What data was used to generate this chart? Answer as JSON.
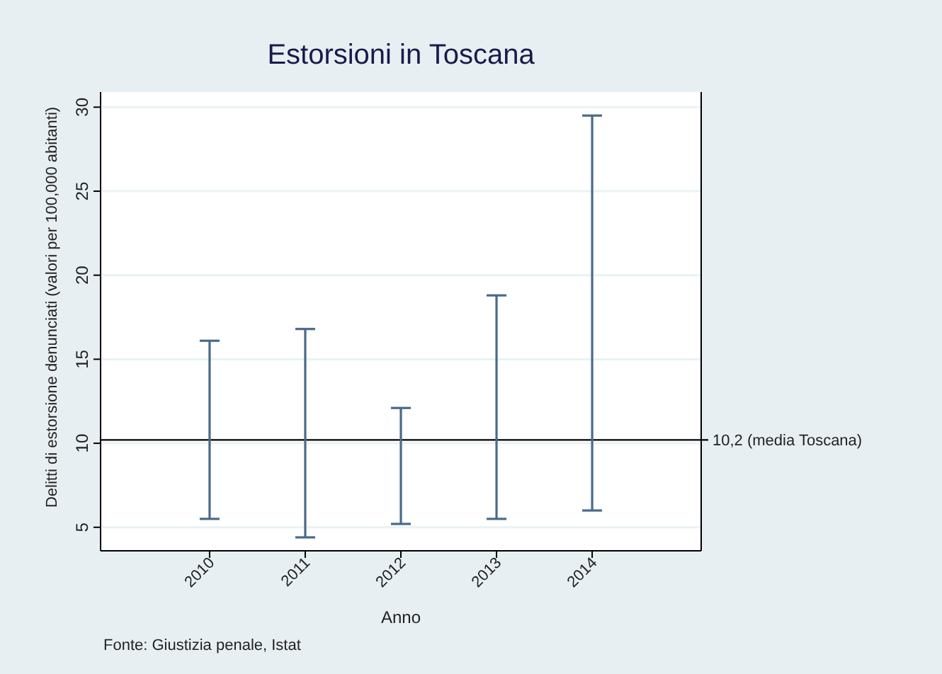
{
  "chart_data": {
    "type": "bar",
    "title": "Estorsioni in Toscana",
    "xlabel": "Anno",
    "ylabel": "Delitti di estorsione denunciati (valori per 100,000 abitanti)",
    "x": [
      2010,
      2011,
      2012,
      2013,
      2014
    ],
    "base": [
      5.5,
      4.4,
      5.2,
      5.5,
      6.0
    ],
    "values": [
      10.6,
      12.4,
      6.9,
      13.3,
      23.5
    ],
    "color": "#4a6a8c",
    "xlim": [
      2008.86,
      2015.14
    ],
    "xticks": [
      2010,
      2011,
      2012,
      2013,
      2014
    ],
    "ylim": [
      3.6,
      30.9
    ],
    "yticks": [
      5,
      10,
      15,
      20,
      25,
      30
    ],
    "grid": "y",
    "ref_lines": [
      {
        "axis": "y",
        "value": 10.2,
        "label": "10,2 (media Toscana)",
        "color": "#000000"
      }
    ],
    "annotations": [
      "Fonte: Giustizia penale, Istat"
    ]
  }
}
